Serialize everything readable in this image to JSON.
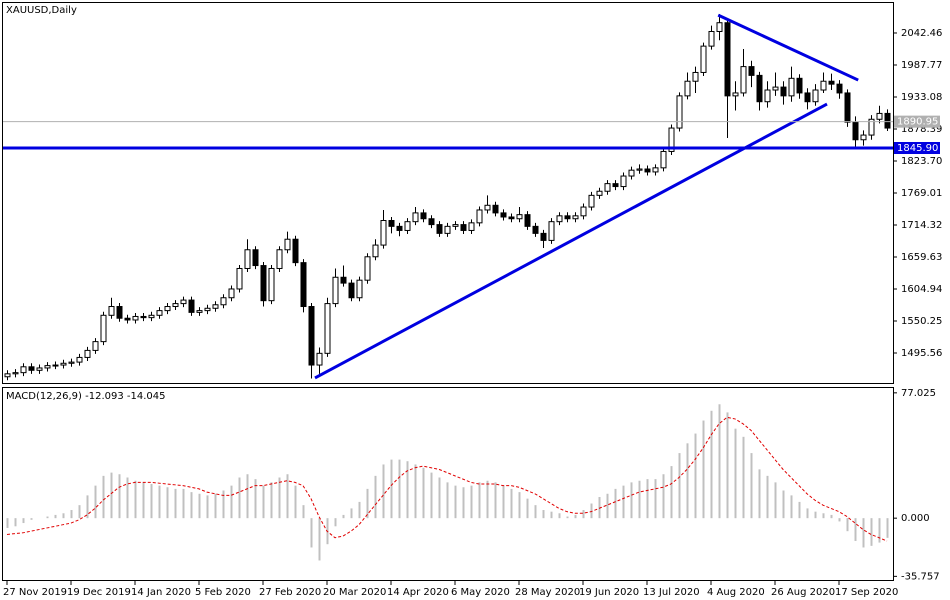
{
  "chart_data": [
    {
      "type": "candlestick",
      "title": "XAUUSD,Daily",
      "up_color": "#ffffff",
      "down_color": "#000000",
      "wick_color": "#000000",
      "xlim": [
        -0.5,
        110.75
      ],
      "xticks": [
        {
          "value": 0,
          "label": "27 Nov 2019"
        },
        {
          "value": 8,
          "label": "19 Dec 2019"
        },
        {
          "value": 16,
          "label": "14 Jan 2020"
        },
        {
          "value": 24,
          "label": "5 Feb 2020"
        },
        {
          "value": 32,
          "label": "27 Feb 2020"
        },
        {
          "value": 40,
          "label": "20 Mar 2020"
        },
        {
          "value": 48,
          "label": "14 Apr 2020"
        },
        {
          "value": 56,
          "label": "6 May 2020"
        },
        {
          "value": 64,
          "label": "28 May 2020"
        },
        {
          "value": 72,
          "label": "19 Jun 2020"
        },
        {
          "value": 80,
          "label": "13 Jul 2020"
        },
        {
          "value": 88,
          "label": "4 Aug 2020"
        },
        {
          "value": 96,
          "label": "26 Aug 2020"
        },
        {
          "value": 104,
          "label": "17 Sep 2020"
        }
      ],
      "ylim": [
        1444.3,
        2093.7
      ],
      "yticks": [
        2042.46,
        1987.77,
        1933.08,
        1878.39,
        {
          "value": 1823.7,
          "label": "1823.70"
        },
        1769.01,
        1714.32,
        1659.63,
        1604.94,
        1550.25,
        1495.56
      ],
      "hlines": [
        {
          "value": 1890.95,
          "color": "#b0b0b0"
        },
        {
          "value": 1845.9,
          "label": "1845.90",
          "color": "#0000e0"
        }
      ],
      "trendlines": [
        {
          "x": [
            38.5,
            102.5
          ],
          "y": [
            1453,
            1921
          ],
          "color": "#0000e0"
        },
        {
          "x": [
            88.9,
            106.4
          ],
          "y": [
            2073,
            1962
          ],
          "color": "#0000e0"
        }
      ],
      "ohlc": [
        [
          1455,
          1466,
          1449,
          1460
        ],
        [
          1460,
          1468,
          1454,
          1462
        ],
        [
          1462,
          1478,
          1456,
          1472
        ],
        [
          1472,
          1478,
          1460,
          1466
        ],
        [
          1466,
          1476,
          1460,
          1470
        ],
        [
          1470,
          1480,
          1464,
          1474
        ],
        [
          1474,
          1481,
          1468,
          1475
        ],
        [
          1475,
          1484,
          1469,
          1478
        ],
        [
          1478,
          1486,
          1472,
          1480
        ],
        [
          1480,
          1494,
          1474,
          1488
        ],
        [
          1488,
          1506,
          1482,
          1500
        ],
        [
          1500,
          1521,
          1494,
          1515
        ],
        [
          1515,
          1566,
          1509,
          1560
        ],
        [
          1560,
          1590,
          1554,
          1575
        ],
        [
          1575,
          1581,
          1549,
          1555
        ],
        [
          1555,
          1561,
          1546,
          1552
        ],
        [
          1552,
          1564,
          1546,
          1558
        ],
        [
          1558,
          1564,
          1550,
          1556
        ],
        [
          1556,
          1566,
          1550,
          1560
        ],
        [
          1560,
          1574,
          1554,
          1568
        ],
        [
          1568,
          1581,
          1562,
          1575
        ],
        [
          1575,
          1586,
          1569,
          1580
        ],
        [
          1580,
          1592,
          1574,
          1586
        ],
        [
          1586,
          1592,
          1559,
          1565
        ],
        [
          1565,
          1574,
          1559,
          1568
        ],
        [
          1568,
          1578,
          1562,
          1572
        ],
        [
          1572,
          1584,
          1566,
          1578
        ],
        [
          1578,
          1596,
          1572,
          1590
        ],
        [
          1590,
          1611,
          1584,
          1605
        ],
        [
          1605,
          1646,
          1599,
          1640
        ],
        [
          1640,
          1690,
          1634,
          1672
        ],
        [
          1672,
          1678,
          1639,
          1645
        ],
        [
          1645,
          1651,
          1575,
          1585
        ],
        [
          1585,
          1646,
          1579,
          1640
        ],
        [
          1640,
          1678,
          1634,
          1672
        ],
        [
          1672,
          1703,
          1666,
          1690
        ],
        [
          1690,
          1696,
          1644,
          1650
        ],
        [
          1650,
          1656,
          1565,
          1575
        ],
        [
          1575,
          1581,
          1452,
          1475
        ],
        [
          1475,
          1505,
          1460,
          1495
        ],
        [
          1495,
          1590,
          1489,
          1580
        ],
        [
          1580,
          1640,
          1574,
          1625
        ],
        [
          1625,
          1645,
          1609,
          1615
        ],
        [
          1615,
          1621,
          1584,
          1590
        ],
        [
          1590,
          1626,
          1584,
          1620
        ],
        [
          1620,
          1666,
          1614,
          1660
        ],
        [
          1660,
          1690,
          1654,
          1680
        ],
        [
          1680,
          1740,
          1674,
          1722
        ],
        [
          1722,
          1728,
          1700,
          1712
        ],
        [
          1712,
          1718,
          1695,
          1705
        ],
        [
          1705,
          1726,
          1699,
          1720
        ],
        [
          1720,
          1745,
          1714,
          1735
        ],
        [
          1735,
          1741,
          1719,
          1725
        ],
        [
          1725,
          1731,
          1709,
          1715
        ],
        [
          1715,
          1721,
          1694,
          1700
        ],
        [
          1700,
          1718,
          1694,
          1712
        ],
        [
          1712,
          1721,
          1706,
          1715
        ],
        [
          1715,
          1721,
          1699,
          1705
        ],
        [
          1705,
          1724,
          1699,
          1718
        ],
        [
          1718,
          1746,
          1712,
          1740
        ],
        [
          1740,
          1765,
          1734,
          1748
        ],
        [
          1748,
          1754,
          1729,
          1735
        ],
        [
          1735,
          1741,
          1722,
          1728
        ],
        [
          1728,
          1734,
          1719,
          1725
        ],
        [
          1725,
          1745,
          1719,
          1732
        ],
        [
          1732,
          1738,
          1706,
          1712
        ],
        [
          1712,
          1718,
          1694,
          1700
        ],
        [
          1700,
          1706,
          1675,
          1688
        ],
        [
          1688,
          1726,
          1682,
          1720
        ],
        [
          1720,
          1736,
          1714,
          1730
        ],
        [
          1730,
          1736,
          1719,
          1725
        ],
        [
          1725,
          1736,
          1719,
          1730
        ],
        [
          1730,
          1751,
          1724,
          1745
        ],
        [
          1745,
          1771,
          1739,
          1765
        ],
        [
          1765,
          1778,
          1759,
          1772
        ],
        [
          1772,
          1791,
          1766,
          1785
        ],
        [
          1785,
          1791,
          1774,
          1780
        ],
        [
          1780,
          1804,
          1774,
          1798
        ],
        [
          1798,
          1814,
          1792,
          1808
        ],
        [
          1808,
          1818,
          1802,
          1810
        ],
        [
          1810,
          1816,
          1799,
          1805
        ],
        [
          1805,
          1818,
          1799,
          1812
        ],
        [
          1812,
          1846,
          1806,
          1840
        ],
        [
          1840,
          1886,
          1834,
          1880
        ],
        [
          1880,
          1941,
          1874,
          1935
        ],
        [
          1935,
          1975,
          1929,
          1960
        ],
        [
          1960,
          1985,
          1940,
          1975
        ],
        [
          1975,
          2026,
          1969,
          2020
        ],
        [
          2020,
          2055,
          2014,
          2045
        ],
        [
          2045,
          2075,
          2030,
          2060
        ],
        [
          2060,
          2066,
          1863,
          1935
        ],
        [
          1935,
          1960,
          1910,
          1940
        ],
        [
          1940,
          2015,
          1934,
          1985
        ],
        [
          1985,
          1995,
          1950,
          1970
        ],
        [
          1970,
          1976,
          1910,
          1925
        ],
        [
          1925,
          1960,
          1915,
          1945
        ],
        [
          1945,
          1975,
          1935,
          1950
        ],
        [
          1950,
          1960,
          1920,
          1935
        ],
        [
          1935,
          1985,
          1925,
          1965
        ],
        [
          1965,
          1972,
          1930,
          1940
        ],
        [
          1940,
          1948,
          1912,
          1925
        ],
        [
          1925,
          1955,
          1918,
          1945
        ],
        [
          1945,
          1975,
          1940,
          1960
        ],
        [
          1960,
          1973,
          1945,
          1955
        ],
        [
          1955,
          1962,
          1930,
          1940
        ],
        [
          1940,
          1946,
          1882,
          1890
        ],
        [
          1890,
          1900,
          1848,
          1860
        ],
        [
          1860,
          1876,
          1850,
          1868
        ],
        [
          1868,
          1902,
          1860,
          1895
        ],
        [
          1895,
          1918,
          1888,
          1905
        ],
        [
          1905,
          1912,
          1875,
          1880
        ]
      ]
    },
    {
      "type": "macd",
      "title": "MACD(12,26,9) -12.093 -14.045",
      "xlim": [
        -0.5,
        110.75
      ],
      "ylim": [
        -38,
        80
      ],
      "yticks": [
        77.025,
        {
          "value": 0,
          "label": "0.000"
        },
        -35.757
      ],
      "histogram_color": "#c0c0c0",
      "signal_color": "#e00000",
      "histogram": [
        -6,
        -5,
        -3,
        -1,
        0,
        1,
        2,
        3,
        5,
        8,
        14,
        20,
        26,
        28,
        27,
        25,
        23,
        22,
        21,
        20,
        19,
        18,
        18,
        16,
        15,
        14,
        15,
        17,
        20,
        25,
        27,
        24,
        20,
        22,
        25,
        27,
        20,
        8,
        -18,
        -26,
        -16,
        -5,
        2,
        6,
        10,
        18,
        26,
        33,
        36,
        36,
        35,
        33,
        31,
        28,
        25,
        22,
        20,
        19,
        20,
        22,
        23,
        22,
        20,
        18,
        16,
        12,
        8,
        5,
        4,
        3,
        1,
        2,
        5,
        9,
        13,
        15,
        18,
        20,
        22,
        23,
        24,
        24,
        27,
        32,
        40,
        46,
        52,
        60,
        66,
        70,
        65,
        55,
        50,
        40,
        30,
        26,
        22,
        17,
        14,
        10,
        6,
        4,
        3,
        2,
        -2,
        -8,
        -14,
        -18,
        -17,
        -15,
        -12.093
      ],
      "signal": [
        -10,
        -9.5,
        -9,
        -8,
        -7,
        -6,
        -5,
        -4,
        -3,
        -1,
        2,
        6,
        11,
        15,
        19,
        21,
        22,
        22,
        22,
        21.5,
        21,
        20.5,
        20,
        19,
        18,
        16,
        15,
        14,
        14,
        16,
        18,
        20,
        20,
        21,
        22,
        23,
        22,
        20,
        12,
        1,
        -8,
        -12,
        -11,
        -8,
        -4,
        2,
        8,
        14,
        20,
        25,
        29,
        31,
        32,
        31,
        30,
        28,
        26,
        24,
        22,
        21,
        21,
        21,
        20,
        20,
        19,
        17,
        15,
        12,
        9,
        6,
        4,
        3,
        3,
        4,
        6,
        8,
        10,
        12,
        14,
        16,
        17,
        18,
        19,
        21,
        25,
        30,
        36,
        43,
        51,
        58,
        62,
        61,
        58,
        54,
        48,
        42,
        36,
        30,
        25,
        20,
        15,
        11,
        8,
        6,
        4,
        1,
        -3,
        -7,
        -10,
        -12,
        -14.045
      ]
    }
  ]
}
